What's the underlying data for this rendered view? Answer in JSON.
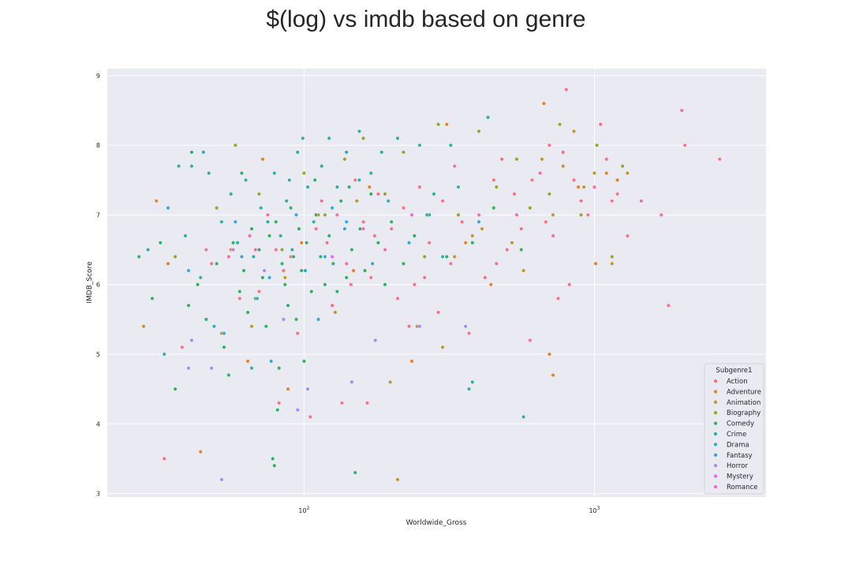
{
  "chart_data": {
    "type": "scatter",
    "title": "$(log) vs imdb based on genre",
    "xlabel": "Worldwide_Gross",
    "ylabel": "IMDB_Score",
    "xscale": "log",
    "xlim": [
      21,
      3900
    ],
    "ylim": [
      2.95,
      9.1
    ],
    "grid": true,
    "x_ticks": [
      {
        "value": 100,
        "label": "10",
        "exp": "2"
      },
      {
        "value": 1000,
        "label": "10",
        "exp": "3"
      }
    ],
    "y_ticks": [
      3,
      4,
      5,
      6,
      7,
      8,
      9
    ],
    "legend": {
      "title": "Subgenre1",
      "placement": "lower right",
      "entries": [
        {
          "name": "Action",
          "color": "#f77189"
        },
        {
          "name": "Adventure",
          "color": "#e5822e"
        },
        {
          "name": "Animation",
          "color": "#bb9832"
        },
        {
          "name": "Biography",
          "color": "#97a431"
        },
        {
          "name": "Comedy",
          "color": "#32b166"
        },
        {
          "name": "Crime",
          "color": "#36ada4"
        },
        {
          "name": "Drama",
          "color": "#38a9c5"
        },
        {
          "name": "Fantasy",
          "color": "#3ba3ec"
        },
        {
          "name": "Horror",
          "color": "#a48cf4"
        },
        {
          "name": "Mystery",
          "color": "#e866f4"
        },
        {
          "name": "Romance",
          "color": "#f668c2"
        }
      ]
    },
    "series": [
      {
        "name": "Action",
        "points": [
          [
            33,
            3.5
          ],
          [
            46,
            6.5
          ],
          [
            55,
            6.4
          ],
          [
            60,
            5.8
          ],
          [
            65,
            6.7
          ],
          [
            70,
            5.9
          ],
          [
            80,
            6.5
          ],
          [
            85,
            6.2
          ],
          [
            90,
            6.4
          ],
          [
            110,
            6.8
          ],
          [
            115,
            7.2
          ],
          [
            120,
            6.6
          ],
          [
            130,
            7.0
          ],
          [
            140,
            6.3
          ],
          [
            150,
            7.5
          ],
          [
            160,
            6.9
          ],
          [
            170,
            6.1
          ],
          [
            180,
            7.3
          ],
          [
            190,
            6.5
          ],
          [
            200,
            6.8
          ],
          [
            210,
            5.8
          ],
          [
            220,
            7.1
          ],
          [
            240,
            6.0
          ],
          [
            250,
            7.4
          ],
          [
            270,
            6.6
          ],
          [
            290,
            5.6
          ],
          [
            300,
            7.2
          ],
          [
            320,
            6.3
          ],
          [
            350,
            6.9
          ],
          [
            370,
            5.3
          ],
          [
            400,
            7.0
          ],
          [
            420,
            6.1
          ],
          [
            450,
            7.5
          ],
          [
            480,
            7.8
          ],
          [
            500,
            6.5
          ],
          [
            530,
            7.3
          ],
          [
            560,
            6.8
          ],
          [
            600,
            5.2
          ],
          [
            650,
            7.6
          ],
          [
            700,
            8.0
          ],
          [
            720,
            6.7
          ],
          [
            750,
            5.8
          ],
          [
            780,
            7.9
          ],
          [
            800,
            8.8
          ],
          [
            820,
            6.0
          ],
          [
            850,
            7.5
          ],
          [
            900,
            7.2
          ],
          [
            950,
            7.0
          ],
          [
            1050,
            8.3
          ],
          [
            1100,
            7.8
          ],
          [
            1150,
            7.2
          ],
          [
            1250,
            7.7
          ],
          [
            1300,
            6.7
          ],
          [
            1450,
            7.2
          ],
          [
            1700,
            7.0
          ],
          [
            1800,
            5.7
          ],
          [
            2000,
            8.5
          ],
          [
            2050,
            8.0
          ],
          [
            2700,
            7.8
          ],
          [
            82,
            4.3
          ],
          [
            105,
            4.1
          ],
          [
            135,
            4.3
          ],
          [
            165,
            4.3
          ],
          [
            38,
            5.1
          ],
          [
            48,
            6.3
          ],
          [
            58,
            6.9
          ],
          [
            75,
            7.0
          ],
          [
            95,
            5.3
          ],
          [
            125,
            5.7
          ],
          [
            145,
            6.0
          ],
          [
            175,
            6.7
          ],
          [
            230,
            5.4
          ],
          [
            260,
            6.1
          ],
          [
            330,
            7.7
          ],
          [
            380,
            6.6
          ],
          [
            460,
            6.3
          ],
          [
            540,
            7.0
          ],
          [
            610,
            7.5
          ],
          [
            680,
            6.9
          ],
          [
            1000,
            7.4
          ],
          [
            1200,
            7.3
          ]
        ]
      },
      {
        "name": "Adventure",
        "points": [
          [
            31,
            7.2
          ],
          [
            34,
            6.3
          ],
          [
            44,
            3.6
          ],
          [
            56,
            6.5
          ],
          [
            64,
            4.9
          ],
          [
            72,
            7.8
          ],
          [
            88,
            4.5
          ],
          [
            98,
            6.6
          ],
          [
            112,
            7.0
          ],
          [
            148,
            6.2
          ],
          [
            168,
            7.4
          ],
          [
            235,
            4.9
          ],
          [
            310,
            8.3
          ],
          [
            360,
            6.6
          ],
          [
            440,
            6.0
          ],
          [
            670,
            8.6
          ],
          [
            700,
            5.0
          ],
          [
            720,
            4.7
          ],
          [
            880,
            7.4
          ],
          [
            1010,
            6.3
          ],
          [
            1100,
            7.6
          ],
          [
            1200,
            7.5
          ]
        ]
      },
      {
        "name": "Animation",
        "points": [
          [
            28,
            5.4
          ],
          [
            52,
            5.3
          ],
          [
            66,
            5.4
          ],
          [
            86,
            6.1
          ],
          [
            128,
            5.6
          ],
          [
            152,
            7.2
          ],
          [
            198,
            4.6
          ],
          [
            210,
            3.2
          ],
          [
            245,
            5.4
          ],
          [
            300,
            5.1
          ],
          [
            330,
            6.4
          ],
          [
            380,
            6.7
          ],
          [
            410,
            6.8
          ],
          [
            520,
            6.6
          ],
          [
            570,
            6.2
          ],
          [
            660,
            7.8
          ],
          [
            720,
            7.0
          ],
          [
            780,
            7.7
          ],
          [
            850,
            8.2
          ],
          [
            920,
            7.4
          ],
          [
            1000,
            7.6
          ],
          [
            1150,
            6.3
          ],
          [
            1300,
            7.6
          ]
        ]
      },
      {
        "name": "Biography",
        "points": [
          [
            36,
            6.4
          ],
          [
            50,
            7.1
          ],
          [
            58,
            8.0
          ],
          [
            70,
            7.3
          ],
          [
            84,
            6.5
          ],
          [
            100,
            7.6
          ],
          [
            118,
            7.0
          ],
          [
            138,
            7.8
          ],
          [
            160,
            8.1
          ],
          [
            190,
            7.3
          ],
          [
            220,
            7.9
          ],
          [
            260,
            6.4
          ],
          [
            290,
            8.3
          ],
          [
            340,
            7.0
          ],
          [
            400,
            8.2
          ],
          [
            460,
            7.4
          ],
          [
            540,
            7.8
          ],
          [
            600,
            7.1
          ],
          [
            700,
            7.3
          ],
          [
            760,
            8.3
          ],
          [
            900,
            7.0
          ],
          [
            1020,
            8.0
          ],
          [
            1150,
            6.4
          ],
          [
            1250,
            7.7
          ]
        ]
      },
      {
        "name": "Comedy",
        "points": [
          [
            27,
            6.4
          ],
          [
            30,
            5.8
          ],
          [
            32,
            6.6
          ],
          [
            36,
            4.5
          ],
          [
            40,
            5.7
          ],
          [
            43,
            6.0
          ],
          [
            46,
            5.5
          ],
          [
            50,
            6.3
          ],
          [
            53,
            5.1
          ],
          [
            55,
            4.7
          ],
          [
            57,
            6.6
          ],
          [
            60,
            5.9
          ],
          [
            62,
            6.2
          ],
          [
            64,
            5.6
          ],
          [
            66,
            6.8
          ],
          [
            68,
            5.8
          ],
          [
            70,
            6.5
          ],
          [
            72,
            6.1
          ],
          [
            74,
            5.4
          ],
          [
            76,
            6.7
          ],
          [
            78,
            3.5
          ],
          [
            79,
            3.4
          ],
          [
            80,
            6.9
          ],
          [
            82,
            4.8
          ],
          [
            84,
            6.3
          ],
          [
            86,
            6.0
          ],
          [
            88,
            5.7
          ],
          [
            90,
            7.1
          ],
          [
            92,
            6.4
          ],
          [
            94,
            5.5
          ],
          [
            96,
            6.8
          ],
          [
            98,
            6.2
          ],
          [
            100,
            4.9
          ],
          [
            102,
            6.6
          ],
          [
            106,
            5.9
          ],
          [
            110,
            7.0
          ],
          [
            114,
            6.4
          ],
          [
            118,
            6.0
          ],
          [
            122,
            6.7
          ],
          [
            126,
            6.3
          ],
          [
            130,
            5.9
          ],
          [
            134,
            7.2
          ],
          [
            140,
            6.1
          ],
          [
            146,
            6.5
          ],
          [
            150,
            3.3
          ],
          [
            156,
            6.8
          ],
          [
            162,
            6.2
          ],
          [
            170,
            7.3
          ],
          [
            180,
            6.6
          ],
          [
            190,
            6.0
          ],
          [
            200,
            6.9
          ],
          [
            220,
            6.3
          ],
          [
            240,
            6.7
          ],
          [
            270,
            7.0
          ],
          [
            310,
            6.4
          ],
          [
            380,
            6.6
          ],
          [
            450,
            7.1
          ],
          [
            560,
            6.5
          ],
          [
            41,
            7.9
          ],
          [
            61,
            7.6
          ],
          [
            81,
            4.2
          ],
          [
            109,
            7.5
          ],
          [
            143,
            7.4
          ]
        ]
      },
      {
        "name": "Crime",
        "points": [
          [
            29,
            6.5
          ],
          [
            33,
            5.0
          ],
          [
            37,
            7.7
          ],
          [
            39,
            6.7
          ],
          [
            41,
            7.7
          ],
          [
            44,
            6.1
          ],
          [
            47,
            7.6
          ],
          [
            49,
            5.4
          ],
          [
            52,
            6.9
          ],
          [
            56,
            7.3
          ],
          [
            59,
            6.6
          ],
          [
            63,
            7.5
          ],
          [
            67,
            6.4
          ],
          [
            71,
            7.1
          ],
          [
            75,
            6.9
          ],
          [
            79,
            7.6
          ],
          [
            83,
            6.7
          ],
          [
            87,
            7.2
          ],
          [
            91,
            6.5
          ],
          [
            95,
            7.9
          ],
          [
            99,
            8.1
          ],
          [
            103,
            7.4
          ],
          [
            108,
            6.9
          ],
          [
            115,
            7.7
          ],
          [
            122,
            8.1
          ],
          [
            130,
            7.4
          ],
          [
            140,
            7.9
          ],
          [
            155,
            8.2
          ],
          [
            170,
            7.6
          ],
          [
            185,
            7.9
          ],
          [
            210,
            8.1
          ],
          [
            250,
            8.0
          ],
          [
            280,
            7.3
          ],
          [
            320,
            8.0
          ],
          [
            370,
            4.5
          ],
          [
            380,
            4.6
          ],
          [
            430,
            8.4
          ],
          [
            570,
            4.1
          ],
          [
            66,
            4.8
          ]
        ]
      },
      {
        "name": "Drama",
        "points": [
          [
            34,
            7.1
          ],
          [
            45,
            7.9
          ],
          [
            53,
            5.3
          ],
          [
            61,
            6.4
          ],
          [
            69,
            5.8
          ],
          [
            77,
            4.9
          ],
          [
            89,
            7.5
          ],
          [
            101,
            6.2
          ],
          [
            112,
            5.5
          ],
          [
            125,
            7.1
          ],
          [
            138,
            6.8
          ],
          [
            155,
            7.5
          ],
          [
            172,
            6.3
          ],
          [
            195,
            7.2
          ],
          [
            230,
            6.6
          ],
          [
            265,
            7.0
          ],
          [
            300,
            6.4
          ],
          [
            340,
            7.4
          ],
          [
            400,
            6.9
          ]
        ]
      },
      {
        "name": "Fantasy",
        "points": [
          [
            40,
            6.2
          ],
          [
            58,
            6.9
          ],
          [
            76,
            6.1
          ],
          [
            94,
            7.0
          ],
          [
            118,
            6.4
          ],
          [
            140,
            6.9
          ]
        ]
      },
      {
        "name": "Horror",
        "points": [
          [
            41,
            5.2
          ],
          [
            48,
            4.8
          ],
          [
            52,
            3.2
          ],
          [
            57,
            6.5
          ],
          [
            73,
            6.2
          ],
          [
            85,
            5.5
          ],
          [
            95,
            4.2
          ],
          [
            103,
            4.5
          ],
          [
            146,
            4.6
          ],
          [
            176,
            5.2
          ],
          [
            250,
            5.4
          ],
          [
            360,
            5.4
          ],
          [
            40,
            4.8
          ]
        ]
      },
      {
        "name": "Mystery",
        "points": [
          [
            125,
            6.4
          ],
          [
            235,
            7.0
          ]
        ]
      },
      {
        "name": "Romance",
        "points": [
          [
            68,
            6.5
          ],
          [
            160,
            6.8
          ]
        ]
      }
    ]
  }
}
